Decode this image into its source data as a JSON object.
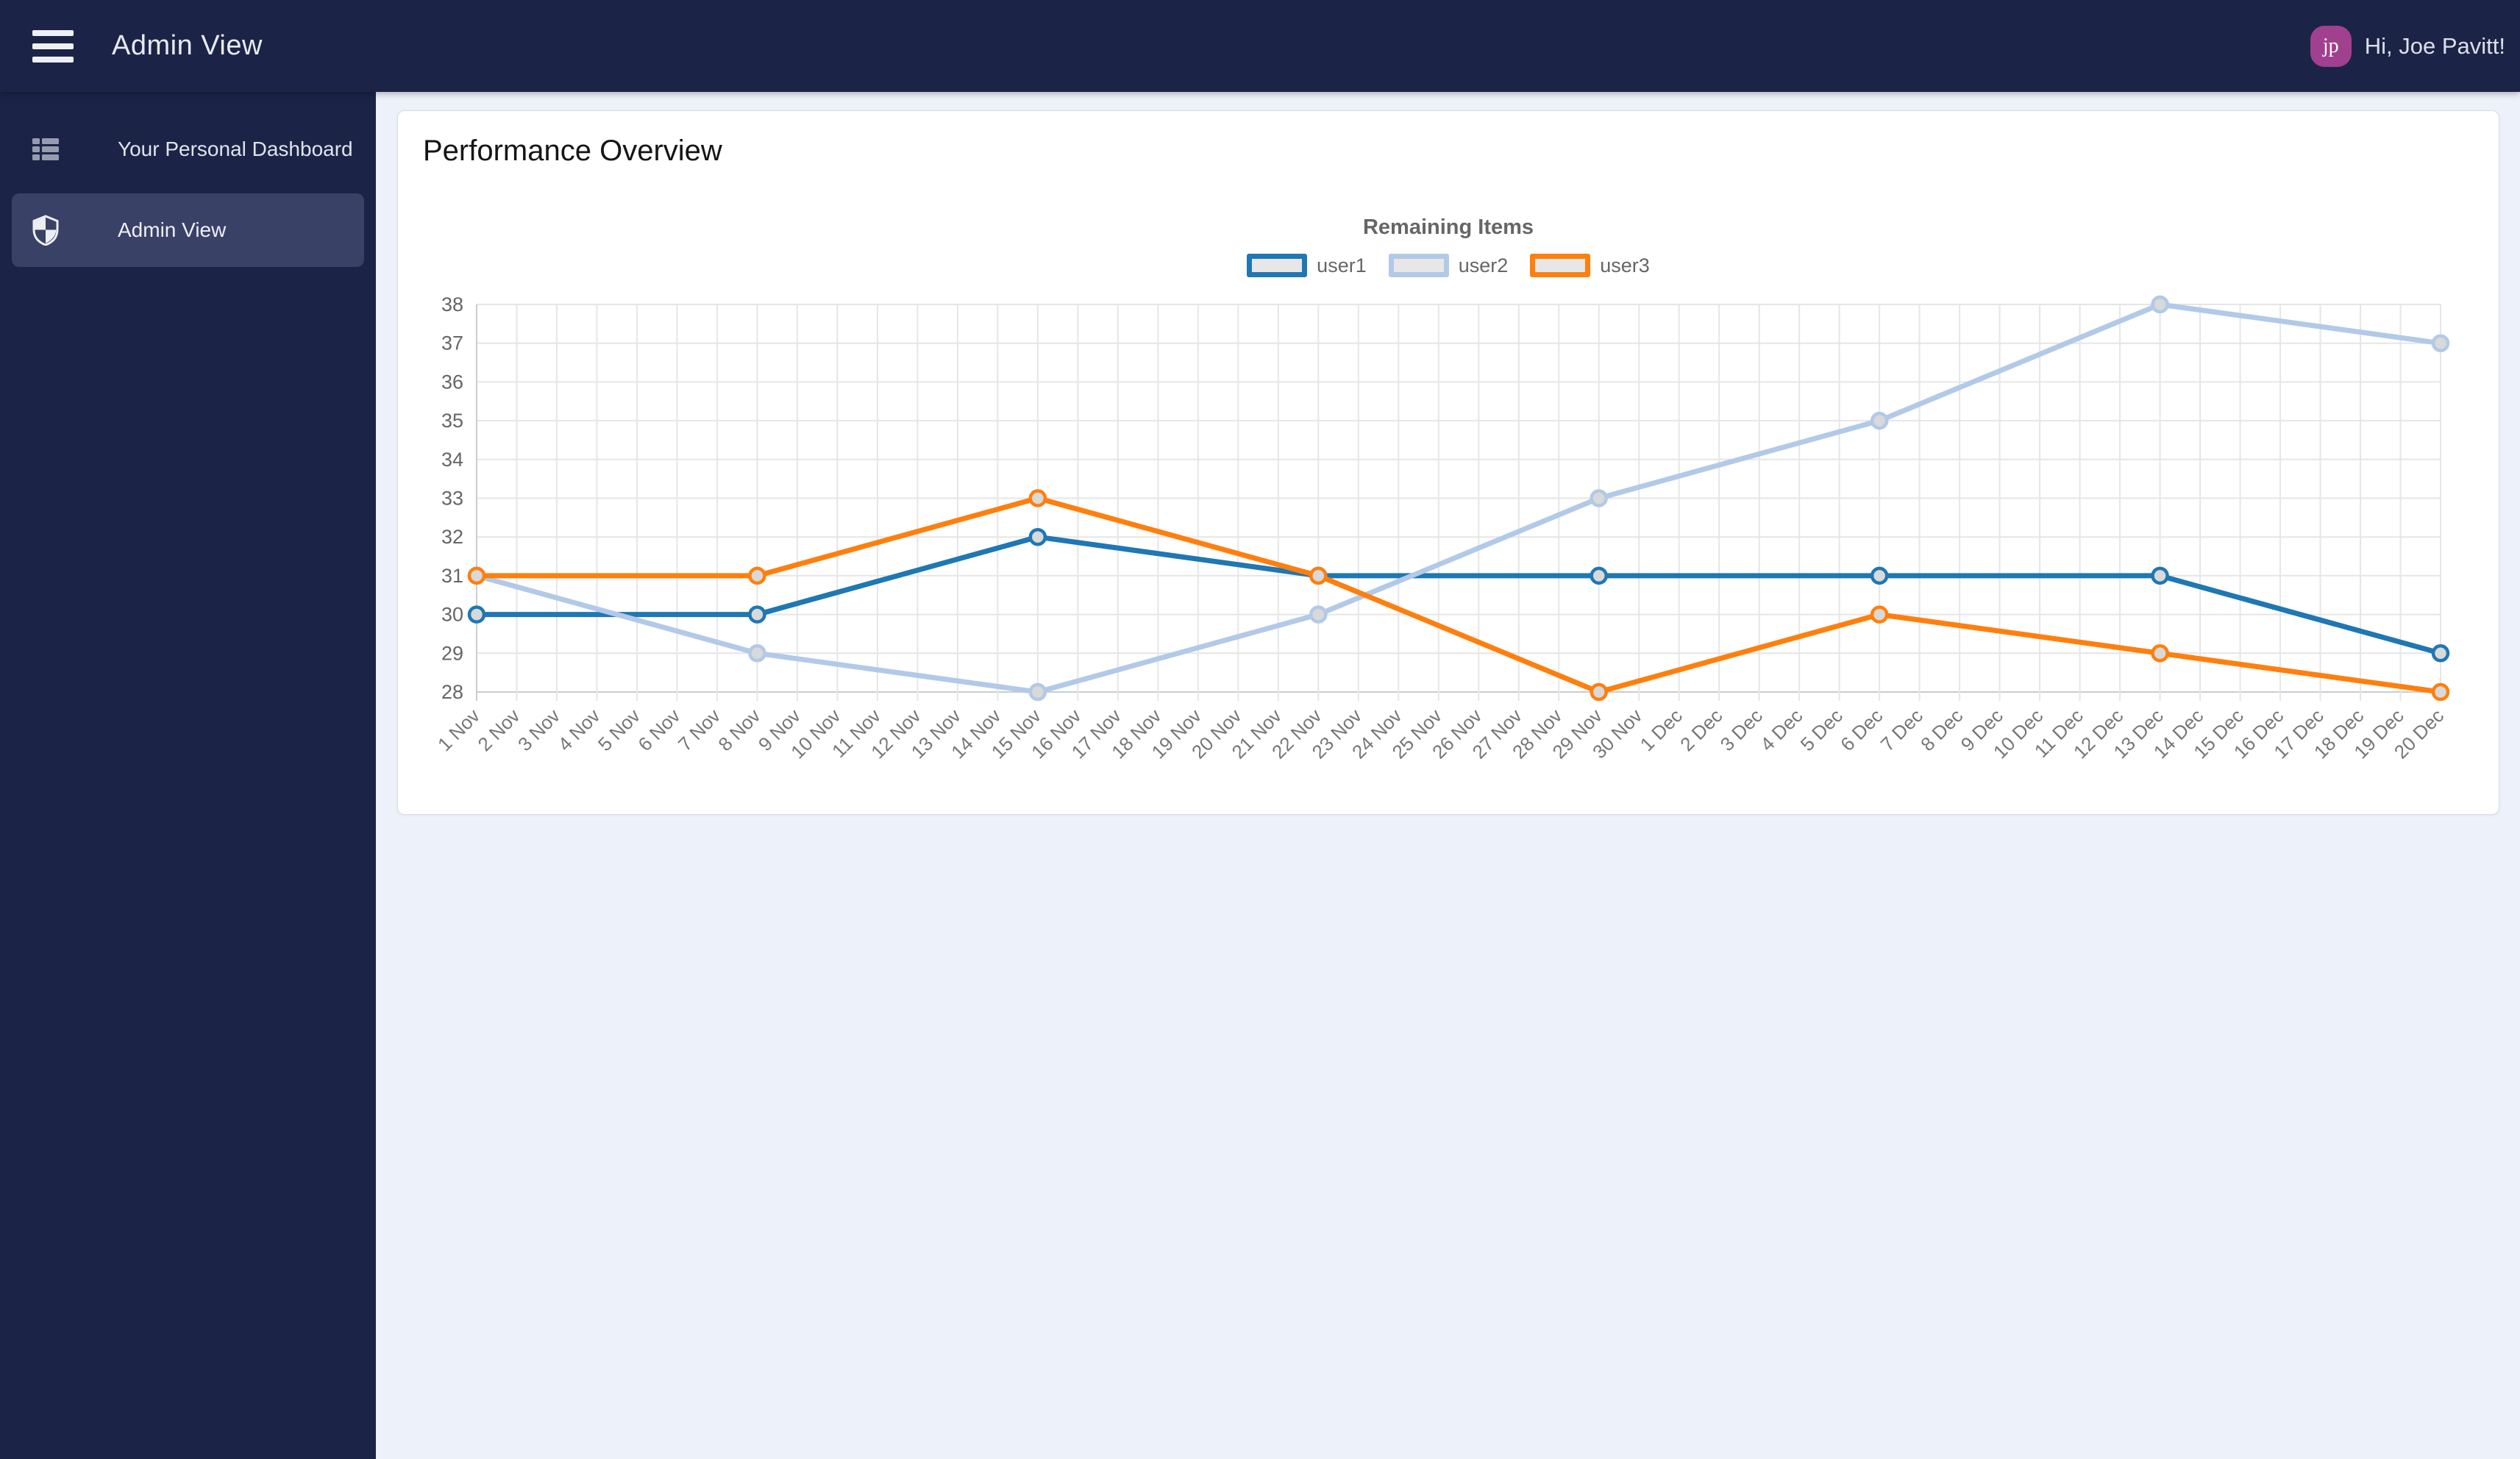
{
  "header": {
    "title": "Admin View",
    "greeting": "Hi, Joe Pavitt!",
    "avatar_initials": "jp",
    "avatar_color": "#a0408f"
  },
  "sidebar": {
    "items": [
      {
        "label": "Your Personal Dashboard",
        "icon": "dashboard-list-icon",
        "active": false
      },
      {
        "label": "Admin View",
        "icon": "shield-icon",
        "active": true
      }
    ]
  },
  "main": {
    "card_title": "Performance Overview"
  },
  "chart_data": {
    "type": "line",
    "title": "Remaining Items",
    "categories": [
      "1 Nov",
      "2 Nov",
      "3 Nov",
      "4 Nov",
      "5 Nov",
      "6 Nov",
      "7 Nov",
      "8 Nov",
      "9 Nov",
      "10 Nov",
      "11 Nov",
      "12 Nov",
      "13 Nov",
      "14 Nov",
      "15 Nov",
      "16 Nov",
      "17 Nov",
      "18 Nov",
      "19 Nov",
      "20 Nov",
      "21 Nov",
      "22 Nov",
      "23 Nov",
      "24 Nov",
      "25 Nov",
      "26 Nov",
      "27 Nov",
      "28 Nov",
      "29 Nov",
      "30 Nov",
      "1 Dec",
      "2 Dec",
      "3 Dec",
      "4 Dec",
      "5 Dec",
      "6 Dec",
      "7 Dec",
      "8 Dec",
      "9 Dec",
      "10 Dec",
      "11 Dec",
      "12 Dec",
      "13 Dec",
      "14 Dec",
      "15 Dec",
      "16 Dec",
      "17 Dec",
      "18 Dec",
      "19 Dec",
      "20 Dec"
    ],
    "series": [
      {
        "name": "user1",
        "color": "#1f77b4",
        "x": [
          "1 Nov",
          "8 Nov",
          "15 Nov",
          "22 Nov",
          "29 Nov",
          "6 Dec",
          "13 Dec",
          "20 Dec"
        ],
        "values": [
          30,
          30,
          32,
          31,
          31,
          31,
          31,
          29
        ]
      },
      {
        "name": "user2",
        "color": "#b2c9e8",
        "x": [
          "1 Nov",
          "8 Nov",
          "15 Nov",
          "22 Nov",
          "29 Nov",
          "6 Dec",
          "13 Dec",
          "20 Dec"
        ],
        "values": [
          31,
          29,
          28,
          30,
          33,
          35,
          38,
          37
        ]
      },
      {
        "name": "user3",
        "color": "#ff7f0e",
        "x": [
          "1 Nov",
          "8 Nov",
          "15 Nov",
          "22 Nov",
          "29 Nov",
          "6 Dec",
          "13 Dec",
          "20 Dec"
        ],
        "values": [
          31,
          31,
          33,
          31,
          28,
          30,
          29,
          28
        ]
      }
    ],
    "ylim": [
      28,
      38
    ],
    "ytick_step": 1,
    "grid": true,
    "legend_position": "top",
    "colors": {
      "grid": "#e6e6e6",
      "axis": "#c9cdd1",
      "tick_text": "#666666",
      "x_label_text": "#777777",
      "point_fill": "#d9d9d9",
      "legend_swatch_fill": "#e7e7e7"
    }
  }
}
